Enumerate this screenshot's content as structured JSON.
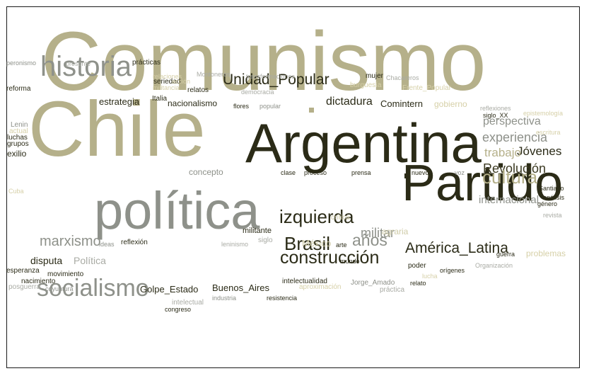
{
  "colors": {
    "dark": "#2b2b17",
    "olive_dark": "#3c3a22",
    "khaki": "#b5b08a",
    "khaki_light": "#cfcba8",
    "gray": "#8e918a",
    "gray_light": "#a9aba4",
    "beige": "#d6d0a8",
    "beige_light": "#e2ddbe"
  },
  "words": [
    {
      "text": "Comunismo",
      "color": "khaki"
    },
    {
      "text": "Chile",
      "color": "khaki"
    },
    {
      "text": "Argentina",
      "color": "dark"
    },
    {
      "text": "Partido",
      "color": "dark"
    },
    {
      "text": "política",
      "color": "gray"
    },
    {
      "text": "historia",
      "color": "gray"
    },
    {
      "text": "socialismo",
      "color": "gray"
    },
    {
      "text": "construcción",
      "color": "dark"
    },
    {
      "text": "izquierda",
      "color": "dark"
    },
    {
      "text": "Unidad_Popular",
      "color": "dark"
    },
    {
      "text": "Revolución",
      "color": "olive_dark"
    },
    {
      "text": "cultura",
      "color": "khaki"
    },
    {
      "text": "Brasil",
      "color": "dark"
    },
    {
      "text": "años",
      "color": "gray"
    },
    {
      "text": "América_Latina",
      "color": "dark"
    },
    {
      "text": "marxismo",
      "color": "gray"
    },
    {
      "text": "militar",
      "color": "gray"
    },
    {
      "text": "Jóvenes",
      "color": "dark"
    },
    {
      "text": "experiencia",
      "color": "gray"
    },
    {
      "text": "trabajo",
      "color": "khaki"
    },
    {
      "text": "internacional",
      "color": "gray"
    },
    {
      "text": "perspectiva",
      "color": "gray"
    },
    {
      "text": "dictadura",
      "color": "dark"
    },
    {
      "text": "Comintern",
      "color": "dark"
    },
    {
      "text": "nacionalismo",
      "color": "dark"
    },
    {
      "text": "estrategia",
      "color": "dark"
    },
    {
      "text": "Golpe_Estado",
      "color": "dark"
    },
    {
      "text": "Buenos_Aires",
      "color": "dark"
    },
    {
      "text": "México",
      "color": "khaki_light"
    },
    {
      "text": "Política",
      "color": "gray_light"
    },
    {
      "text": "disputa",
      "color": "dark"
    },
    {
      "text": "prácticas",
      "color": "dark"
    },
    {
      "text": "relatos",
      "color": "dark"
    },
    {
      "text": "reforma",
      "color": "dark"
    },
    {
      "text": "peronismo",
      "color": "gray"
    },
    {
      "text": "presente",
      "color": "gray_light"
    },
    {
      "text": "relaciones",
      "color": "beige"
    },
    {
      "text": "Montoneros",
      "color": "gray_light"
    },
    {
      "text": "transformaciones",
      "color": "gray_light"
    },
    {
      "text": "burguesía",
      "color": "beige"
    },
    {
      "text": "seriedad",
      "color": "dark"
    },
    {
      "text": "acción",
      "color": "beige"
    },
    {
      "text": "democracia",
      "color": "gray_light"
    },
    {
      "text": "mujer",
      "color": "dark"
    },
    {
      "text": "Chacareros",
      "color": "gray_light"
    },
    {
      "text": "Frente_Popular",
      "color": "beige"
    },
    {
      "text": "militancia",
      "color": "beige"
    },
    {
      "text": "Italia",
      "color": "dark"
    },
    {
      "text": "flores",
      "color": "dark"
    },
    {
      "text": "popular",
      "color": "gray"
    },
    {
      "text": "gobierno",
      "color": "beige"
    },
    {
      "text": "reflexiones",
      "color": "gray_light"
    },
    {
      "text": "epistemología",
      "color": "beige"
    },
    {
      "text": "siglo_XX",
      "color": "dark"
    },
    {
      "text": "escritura",
      "color": "beige"
    },
    {
      "text": "Lenin",
      "color": "gray"
    },
    {
      "text": "actual",
      "color": "beige"
    },
    {
      "text": "luchas",
      "color": "dark"
    },
    {
      "text": "grupos",
      "color": "dark"
    },
    {
      "text": "exilio",
      "color": "dark"
    },
    {
      "text": "concepto",
      "color": "gray"
    },
    {
      "text": "clase",
      "color": "dark"
    },
    {
      "text": "proceso",
      "color": "dark"
    },
    {
      "text": "prensa",
      "color": "dark"
    },
    {
      "text": "nuevos",
      "color": "dark"
    },
    {
      "text": "voz",
      "color": "gray"
    },
    {
      "text": "Santiago",
      "color": "dark"
    },
    {
      "text": "análisis",
      "color": "dark"
    },
    {
      "text": "género",
      "color": "dark"
    },
    {
      "text": "Cuba",
      "color": "beige"
    },
    {
      "text": "revista",
      "color": "gray_light"
    },
    {
      "text": "crítica",
      "color": "khaki_light"
    },
    {
      "text": "agraria",
      "color": "khaki_light"
    },
    {
      "text": "militante",
      "color": "dark"
    },
    {
      "text": "siglo",
      "color": "gray_light"
    },
    {
      "text": "leninismo",
      "color": "gray_light"
    },
    {
      "text": "ideas",
      "color": "gray"
    },
    {
      "text": "reflexión",
      "color": "dark"
    },
    {
      "text": "arte",
      "color": "dark"
    },
    {
      "text": "mundo",
      "color": "dark"
    },
    {
      "text": "poder",
      "color": "dark"
    },
    {
      "text": "orígenes",
      "color": "dark"
    },
    {
      "text": "guerra",
      "color": "dark"
    },
    {
      "text": "problemas",
      "color": "beige"
    },
    {
      "text": "Organización",
      "color": "gray_light"
    },
    {
      "text": "esperanza",
      "color": "dark"
    },
    {
      "text": "movimiento",
      "color": "dark"
    },
    {
      "text": "nacimiento",
      "color": "dark"
    },
    {
      "text": "posguerra",
      "color": "gray_light"
    },
    {
      "text": "coyuntura",
      "color": "gray"
    },
    {
      "text": "intelectualidad",
      "color": "dark"
    },
    {
      "text": "Jorge_Amado",
      "color": "gray"
    },
    {
      "text": "relato",
      "color": "dark"
    },
    {
      "text": "aproximación",
      "color": "beige"
    },
    {
      "text": "lucha",
      "color": "beige"
    },
    {
      "text": "práctica",
      "color": "gray_light"
    },
    {
      "text": "intelectual",
      "color": "gray_light"
    },
    {
      "text": "industria",
      "color": "gray"
    },
    {
      "text": "congreso",
      "color": "dark"
    },
    {
      "text": "resistencia",
      "color": "dark"
    }
  ]
}
